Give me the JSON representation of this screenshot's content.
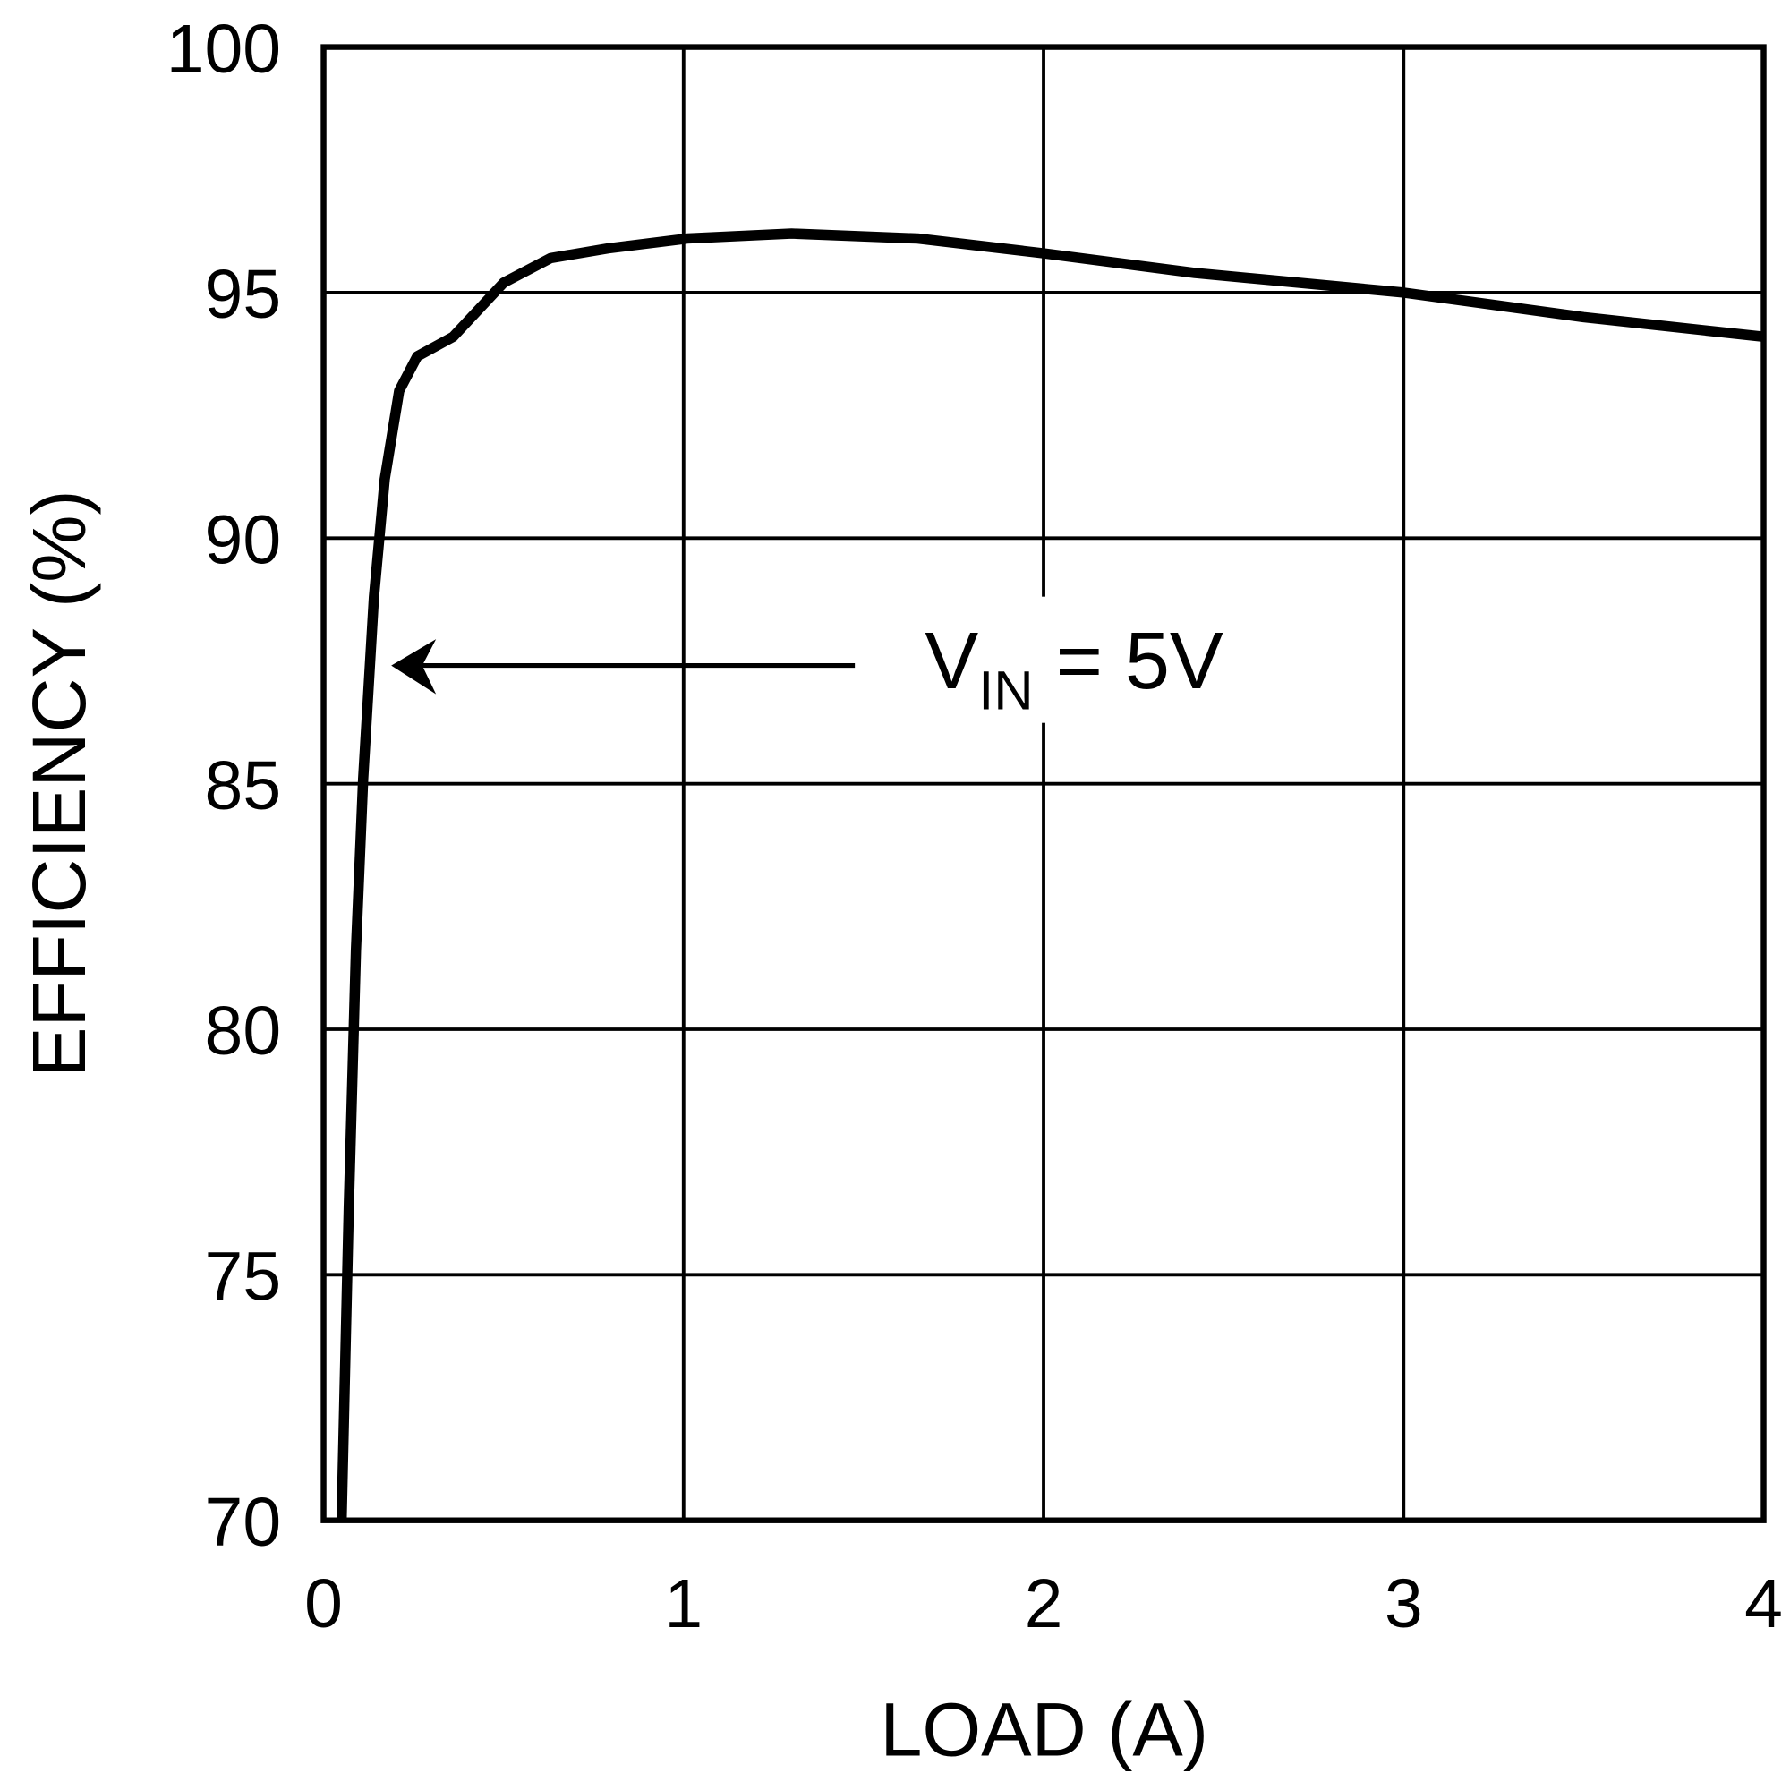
{
  "chart_data": {
    "type": "line",
    "title": "",
    "xlabel": "LOAD (A)",
    "ylabel": "EFFICIENCY (%)",
    "xlim": [
      0,
      4
    ],
    "ylim": [
      70,
      100
    ],
    "xticks": [
      "0",
      "1",
      "2",
      "3",
      "4"
    ],
    "yticks": [
      "70",
      "75",
      "80",
      "85",
      "90",
      "95",
      "100"
    ],
    "grid": true,
    "legend": null,
    "annotations": [
      {
        "text": "V",
        "subscript": "IN",
        "suffix": " = 5V",
        "arrow_to": {
          "x": 0.2,
          "y": 87.4
        }
      }
    ],
    "series": [
      {
        "name": "VIN = 5V",
        "x": [
          0.05,
          0.07,
          0.09,
          0.11,
          0.14,
          0.17,
          0.21,
          0.26,
          0.36,
          0.5,
          0.63,
          0.79,
          1.01,
          1.3,
          1.65,
          2.0,
          2.42,
          3.0,
          3.5,
          4.0
        ],
        "y": [
          70.0,
          76.4,
          81.6,
          85.1,
          88.8,
          91.2,
          93.0,
          93.7,
          94.1,
          95.2,
          95.7,
          95.9,
          96.1,
          96.2,
          96.1,
          95.8,
          95.4,
          95.0,
          94.5,
          94.1
        ]
      }
    ]
  },
  "axes": {
    "x_label": "LOAD (A)",
    "y_label": "EFFICIENCY (%)"
  },
  "annotation": {
    "main": "V",
    "sub": "IN",
    "rest": " = 5V"
  },
  "colors": {
    "line": "#000000",
    "grid": "#000000",
    "background": "#ffffff"
  }
}
